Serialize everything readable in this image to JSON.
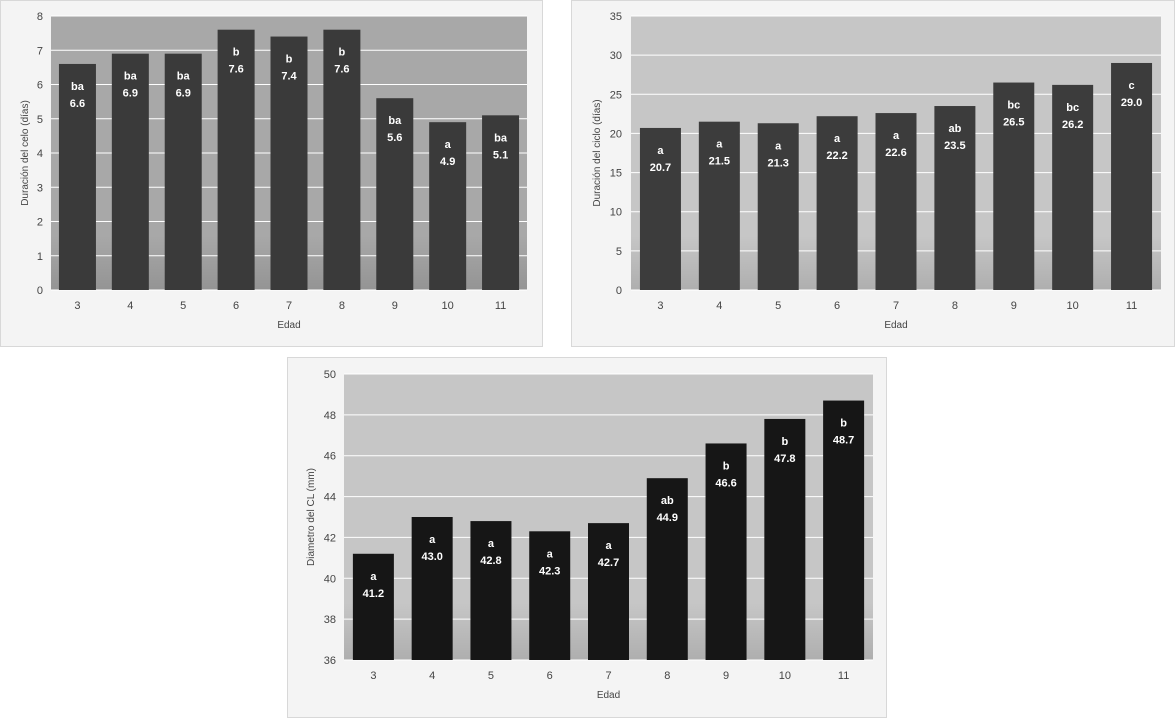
{
  "chart_data": [
    {
      "type": "bar",
      "xlabel": "Edad",
      "ylabel": "Duración del celo (días)",
      "ylim": [
        0,
        8
      ],
      "yticks": [
        0,
        1,
        2,
        3,
        4,
        5,
        6,
        7,
        8
      ],
      "categories": [
        "3",
        "4",
        "5",
        "6",
        "7",
        "8",
        "9",
        "10",
        "11"
      ],
      "values": [
        6.6,
        6.9,
        6.9,
        7.6,
        7.4,
        7.6,
        5.6,
        4.9,
        5.1
      ],
      "value_labels": [
        "6.6",
        "6.9",
        "6.9",
        "7.6",
        "7.4",
        "7.6",
        "5.6",
        "4.9",
        "5.1"
      ],
      "letters": [
        "ba",
        "ba",
        "ba",
        "b",
        "b",
        "b",
        "ba",
        "a",
        "ba"
      ],
      "grid": true,
      "colors": {
        "bar": "#3a3a3a",
        "plot_bg": "#a8a8a8",
        "grid": "#ffffff"
      }
    },
    {
      "type": "bar",
      "xlabel": "Edad",
      "ylabel": "Duración del ciclo (días)",
      "ylim": [
        0,
        35
      ],
      "yticks": [
        0,
        5,
        10,
        15,
        20,
        25,
        30,
        35
      ],
      "categories": [
        "3",
        "4",
        "5",
        "6",
        "7",
        "8",
        "9",
        "10",
        "11"
      ],
      "values": [
        20.7,
        21.5,
        21.3,
        22.2,
        22.6,
        23.5,
        26.5,
        26.2,
        29.0
      ],
      "value_labels": [
        "20.7",
        "21.5",
        "21.3",
        "22.2",
        "22.6",
        "23.5",
        "26.5",
        "26.2",
        "29.0"
      ],
      "letters": [
        "a",
        "a",
        "a",
        "a",
        "a",
        "ab",
        "bc",
        "bc",
        "c"
      ],
      "grid": true,
      "colors": {
        "bar": "#3c3c3c",
        "plot_bg": "#c6c6c6",
        "grid": "#ffffff"
      }
    },
    {
      "type": "bar",
      "xlabel": "Edad",
      "ylabel": "Diametro del CL (mm)",
      "ylim": [
        36,
        50
      ],
      "yticks": [
        36,
        38,
        40,
        42,
        44,
        46,
        48,
        50
      ],
      "categories": [
        "3",
        "4",
        "5",
        "6",
        "7",
        "8",
        "9",
        "10",
        "11"
      ],
      "values": [
        41.2,
        43.0,
        42.8,
        42.3,
        42.7,
        44.9,
        46.6,
        47.8,
        48.7
      ],
      "value_labels": [
        "41.2",
        "43.0",
        "42.8",
        "42.3",
        "42.7",
        "44.9",
        "46.6",
        "47.8",
        "48.7"
      ],
      "letters": [
        "a",
        "a",
        "a",
        "a",
        "a",
        "ab",
        "b",
        "b",
        "b"
      ],
      "grid": true,
      "colors": {
        "bar": "#161616",
        "plot_bg": "#c6c6c6",
        "grid": "#ffffff"
      }
    }
  ]
}
